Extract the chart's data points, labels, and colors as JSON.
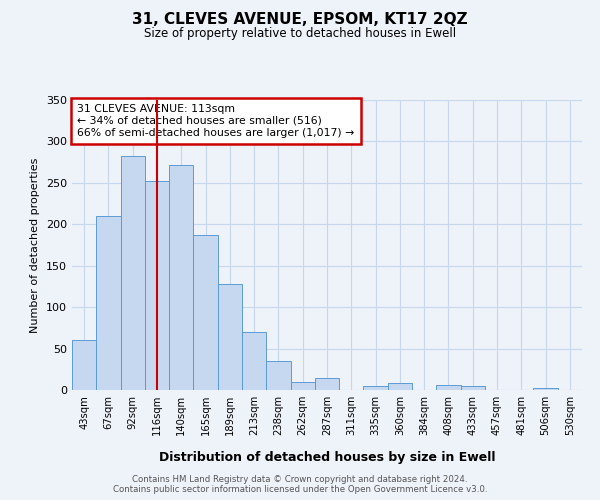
{
  "title": "31, CLEVES AVENUE, EPSOM, KT17 2QZ",
  "subtitle": "Size of property relative to detached houses in Ewell",
  "xlabel": "Distribution of detached houses by size in Ewell",
  "ylabel": "Number of detached properties",
  "categories": [
    "43sqm",
    "67sqm",
    "92sqm",
    "116sqm",
    "140sqm",
    "165sqm",
    "189sqm",
    "213sqm",
    "238sqm",
    "262sqm",
    "287sqm",
    "311sqm",
    "335sqm",
    "360sqm",
    "384sqm",
    "408sqm",
    "433sqm",
    "457sqm",
    "481sqm",
    "506sqm",
    "530sqm"
  ],
  "values": [
    60,
    210,
    282,
    252,
    272,
    187,
    128,
    70,
    35,
    10,
    14,
    0,
    5,
    9,
    0,
    6,
    5,
    0,
    0,
    2,
    0
  ],
  "bar_color": "#c5d8f0",
  "bar_edge_color": "#5b9bd5",
  "vline_x": 3,
  "vline_color": "#cc0000",
  "ylim": [
    0,
    350
  ],
  "yticks": [
    0,
    50,
    100,
    150,
    200,
    250,
    300,
    350
  ],
  "annotation_title": "31 CLEVES AVENUE: 113sqm",
  "annotation_line1": "← 34% of detached houses are smaller (516)",
  "annotation_line2": "66% of semi-detached houses are larger (1,017) →",
  "annotation_box_color": "#cc0000",
  "footer1": "Contains HM Land Registry data © Crown copyright and database right 2024.",
  "footer2": "Contains public sector information licensed under the Open Government Licence v3.0.",
  "bg_color": "#eef2f9",
  "grid_color": "#c8d8ec"
}
